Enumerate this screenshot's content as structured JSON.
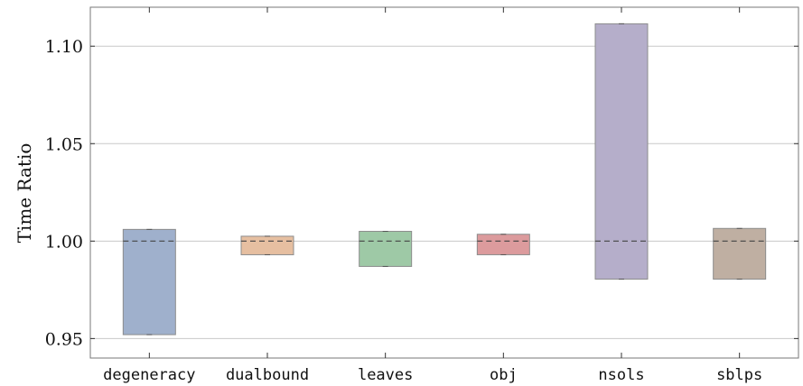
{
  "chart_data": {
    "type": "box",
    "title": "",
    "xlabel": "",
    "ylabel": "Time Ratio",
    "ylim": [
      0.94,
      1.12
    ],
    "yticks": [
      0.95,
      1.0,
      1.05,
      1.1
    ],
    "ytick_labels": [
      "0.95",
      "1.00",
      "1.05",
      "1.10"
    ],
    "grid": "horizontal",
    "categories": [
      "degeneracy",
      "dualbound",
      "leaves",
      "obj",
      "nsols",
      "sblps"
    ],
    "boxes": [
      {
        "category": "degeneracy",
        "low": 0.952,
        "median": 1.0,
        "high": 1.006,
        "color": "#9fb0cc"
      },
      {
        "category": "dualbound",
        "low": 0.993,
        "median": 1.0,
        "high": 1.0025,
        "color": "#e6bfa1"
      },
      {
        "category": "leaves",
        "low": 0.987,
        "median": 1.0,
        "high": 1.005,
        "color": "#9ec9a6"
      },
      {
        "category": "obj",
        "low": 0.993,
        "median": 1.0,
        "high": 1.0035,
        "color": "#dc9b9d"
      },
      {
        "category": "nsols",
        "low": 0.9805,
        "median": 1.0,
        "high": 1.1115,
        "color": "#b5aeca"
      },
      {
        "category": "sblps",
        "low": 0.9805,
        "median": 1.0,
        "high": 1.0065,
        "color": "#bfafa2"
      }
    ]
  }
}
